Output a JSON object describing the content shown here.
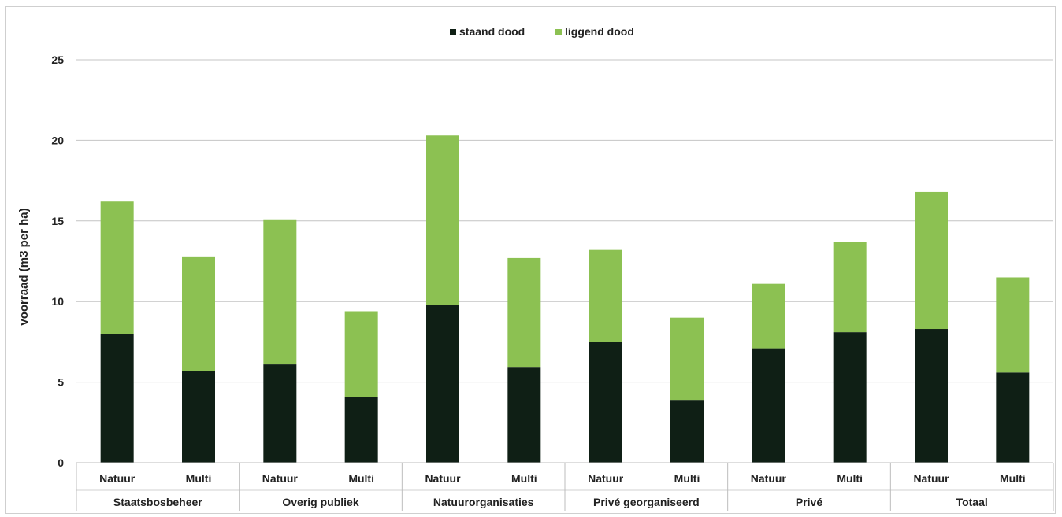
{
  "chart_data": {
    "type": "bar",
    "stacked": true,
    "ylabel": "voorraad (m3 per ha)",
    "ylim": [
      0,
      25
    ],
    "yticks": [
      0,
      5,
      10,
      15,
      20,
      25
    ],
    "grid": true,
    "legend_position": "top-center",
    "groups": [
      {
        "label": "Staatsbosbeheer",
        "categories": [
          "Natuur",
          "Multi"
        ]
      },
      {
        "label": "Overig publiek",
        "categories": [
          "Natuur",
          "Multi"
        ]
      },
      {
        "label": "Natuurorganisaties",
        "categories": [
          "Natuur",
          "Multi"
        ]
      },
      {
        "label": "Privé georganiseerd",
        "categories": [
          "Natuur",
          "Multi"
        ]
      },
      {
        "label": "Privé",
        "categories": [
          "Natuur",
          "Multi"
        ]
      },
      {
        "label": "Totaal",
        "categories": [
          "Natuur",
          "Multi"
        ]
      }
    ],
    "categories": [
      "Natuur",
      "Multi",
      "Natuur",
      "Multi",
      "Natuur",
      "Multi",
      "Natuur",
      "Multi",
      "Natuur",
      "Multi",
      "Natuur",
      "Multi"
    ],
    "series": [
      {
        "name": "staand dood",
        "color": "#0f1f15",
        "values": [
          8.0,
          5.7,
          6.1,
          4.1,
          9.8,
          5.9,
          7.5,
          3.9,
          7.1,
          8.1,
          8.3,
          5.6
        ]
      },
      {
        "name": "liggend dood",
        "color": "#8cc152",
        "values": [
          8.2,
          7.1,
          9.0,
          5.3,
          10.5,
          6.8,
          5.7,
          5.1,
          4.0,
          5.6,
          8.5,
          5.9
        ]
      }
    ]
  }
}
